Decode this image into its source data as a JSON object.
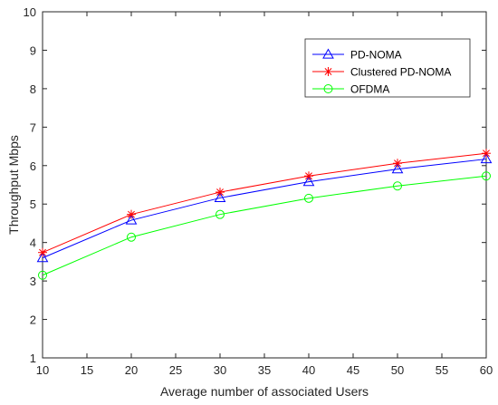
{
  "chart_data": {
    "type": "line",
    "title": "",
    "xlabel": "Average number of associated Users",
    "ylabel": "Throughput Mbps",
    "xlim": [
      10,
      60
    ],
    "ylim": [
      1,
      10
    ],
    "xticks": [
      "10",
      "15",
      "20",
      "25",
      "30",
      "35",
      "40",
      "45",
      "50",
      "55",
      "60"
    ],
    "yticks": [
      "1",
      "2",
      "3",
      "4",
      "5",
      "6",
      "7",
      "8",
      "9",
      "10"
    ],
    "grid": false,
    "legend_position": "top-right",
    "x": [
      10,
      20,
      30,
      40,
      50,
      60
    ],
    "series": [
      {
        "name": "PD-NOMA",
        "values": [
          3.6,
          4.58,
          5.16,
          5.58,
          5.91,
          6.17
        ],
        "color": "#0000ff",
        "marker": "triangle"
      },
      {
        "name": "Clustered PD-NOMA",
        "values": [
          3.74,
          4.73,
          5.31,
          5.73,
          6.06,
          6.32
        ],
        "color": "#ff0000",
        "marker": "asterisk"
      },
      {
        "name": "OFDMA",
        "values": [
          3.15,
          4.14,
          4.73,
          5.15,
          5.47,
          5.73
        ],
        "color": "#00ff00",
        "marker": "circle"
      }
    ]
  }
}
